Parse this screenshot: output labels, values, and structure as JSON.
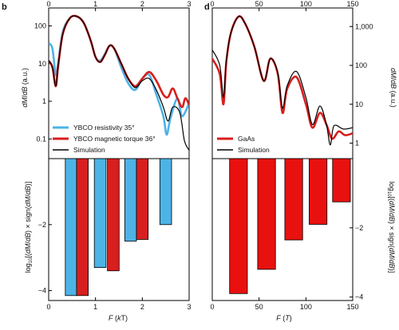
{
  "panel_labels": {
    "left": "b",
    "right": "d"
  },
  "chart_data": [
    {
      "id": "b-top",
      "type": "line",
      "x_unit": "kT",
      "xlim": [
        0,
        3
      ],
      "x_ticks": [
        0,
        1,
        2,
        3
      ],
      "ylim_log": [
        0.03,
        300
      ],
      "y_ticks": [
        0.1,
        1,
        10,
        100
      ],
      "y_tick_labels": [
        "0.1",
        "1",
        "10",
        "100"
      ],
      "ylabel": "dM/dB (a.u.)",
      "y_log": true,
      "legend_position": "bottom-left",
      "series": [
        {
          "name": "YBCO resistivity 35°",
          "color": "#4db3e6",
          "x": [
            0,
            0.08,
            0.15,
            0.2,
            0.3,
            0.45,
            0.6,
            0.75,
            0.9,
            1.0,
            1.1,
            1.2,
            1.3,
            1.4,
            1.55,
            1.7,
            1.85,
            2.0,
            2.15,
            2.3,
            2.45,
            2.52,
            2.6,
            2.75,
            2.85,
            3.0
          ],
          "y": [
            35,
            25,
            5,
            10,
            70,
            160,
            180,
            120,
            40,
            15,
            12,
            18,
            30,
            25,
            8,
            3,
            2,
            4,
            5,
            1.5,
            0.4,
            0.13,
            0.35,
            1.2,
            0.4,
            0.9
          ]
        },
        {
          "name": "YBCO magnetic torque 36°",
          "color": "#d81e1e",
          "x": [
            0,
            0.08,
            0.15,
            0.2,
            0.3,
            0.45,
            0.6,
            0.75,
            0.9,
            1.0,
            1.1,
            1.2,
            1.3,
            1.4,
            1.55,
            1.7,
            1.85,
            2.0,
            2.15,
            2.3,
            2.45,
            2.55,
            2.65,
            2.75,
            2.85,
            2.92,
            3.0
          ],
          "y": [
            12,
            8,
            2.5,
            8,
            60,
            160,
            180,
            120,
            40,
            15,
            11,
            17,
            30,
            25,
            10,
            4,
            2.5,
            4,
            6,
            3.5,
            1.5,
            1.3,
            2.2,
            1.2,
            0.7,
            1.2,
            0.8
          ]
        },
        {
          "name": "Simulation",
          "color": "#000000",
          "x": [
            0,
            0.08,
            0.15,
            0.2,
            0.3,
            0.45,
            0.6,
            0.75,
            0.9,
            1.0,
            1.1,
            1.2,
            1.3,
            1.4,
            1.55,
            1.7,
            1.85,
            2.0,
            2.15,
            2.3,
            2.45,
            2.55,
            2.65,
            2.8,
            2.9,
            3.0
          ],
          "y": [
            12,
            8,
            2.5,
            8,
            60,
            160,
            180,
            120,
            40,
            15,
            11,
            17,
            30,
            25,
            10,
            4,
            2.3,
            3.5,
            4,
            2,
            0.7,
            0.3,
            0.7,
            0.5,
            0.09,
            0.05
          ]
        }
      ]
    },
    {
      "id": "b-bottom",
      "type": "bar",
      "xlabel": "F (kT)",
      "x_unit": "kT",
      "xlim": [
        0,
        3
      ],
      "x_ticks": [
        0,
        1,
        2,
        3
      ],
      "ylim": [
        -4.3,
        0
      ],
      "y_ticks": [
        -2,
        -4
      ],
      "y_tick_labels": [
        "−2",
        "−4"
      ],
      "ylabel": "log10[(dM/dB) × sign(dM/dB)]",
      "bar_width": 0.25,
      "series": [
        {
          "color": "#4db3e6",
          "x": [
            0.48,
            1.1,
            1.75,
            2.5
          ],
          "values": [
            -4.15,
            -3.3,
            -2.5,
            -2.0
          ]
        },
        {
          "color": "#d81e1e",
          "x": [
            0.72,
            1.38,
            2.0
          ],
          "values": [
            -4.15,
            -3.4,
            -2.45
          ]
        }
      ]
    },
    {
      "id": "d-top",
      "type": "line",
      "x_unit": "T",
      "xlim": [
        0,
        150
      ],
      "x_ticks": [
        0,
        50,
        100,
        150
      ],
      "ylim_log": [
        0.4,
        3000
      ],
      "y_ticks": [
        1,
        10,
        100,
        1000
      ],
      "y_tick_labels": [
        "1",
        "10",
        "100",
        "1,000"
      ],
      "ylabel": "dM/dB (a.u.)",
      "y_log": true,
      "legend_position": "bottom-left",
      "series": [
        {
          "name": "GaAs",
          "color": "#d81e1e",
          "x": [
            0,
            8,
            12,
            15,
            20,
            28,
            35,
            45,
            55,
            62,
            70,
            75,
            80,
            90,
            100,
            107,
            115,
            122,
            128,
            135,
            142,
            150
          ],
          "y": [
            150,
            60,
            10,
            120,
            700,
            1800,
            1200,
            300,
            40,
            150,
            60,
            6,
            25,
            50,
            10,
            2.5,
            6,
            3,
            1.3,
            2,
            1.6,
            1.8
          ]
        },
        {
          "name": "Simulation",
          "color": "#000000",
          "x": [
            0,
            8,
            12,
            15,
            20,
            28,
            35,
            45,
            55,
            62,
            70,
            75,
            80,
            90,
            100,
            107,
            115,
            122,
            126,
            130,
            140,
            150
          ],
          "y": [
            250,
            100,
            15,
            140,
            700,
            1800,
            1200,
            300,
            40,
            150,
            65,
            8,
            30,
            70,
            15,
            3,
            9,
            3,
            0.9,
            2.8,
            2.3,
            2.5
          ]
        }
      ]
    },
    {
      "id": "d-bottom",
      "type": "bar",
      "xlabel": "F (T)",
      "x_unit": "T",
      "xlim": [
        0,
        150
      ],
      "x_ticks": [
        0,
        50,
        100,
        150
      ],
      "ylim": [
        -4.1,
        0
      ],
      "y_ticks": [
        -2,
        -4
      ],
      "y_tick_labels": [
        "−2",
        "−4"
      ],
      "ylabel": "log10[(dM/dB) × sign(dM/dB)]",
      "bar_width": 19,
      "series": [
        {
          "color": "#e8110f",
          "x": [
            28,
            58,
            87,
            113,
            138
          ],
          "values": [
            -3.9,
            -3.2,
            -2.35,
            -1.9,
            -1.25
          ]
        }
      ]
    }
  ]
}
